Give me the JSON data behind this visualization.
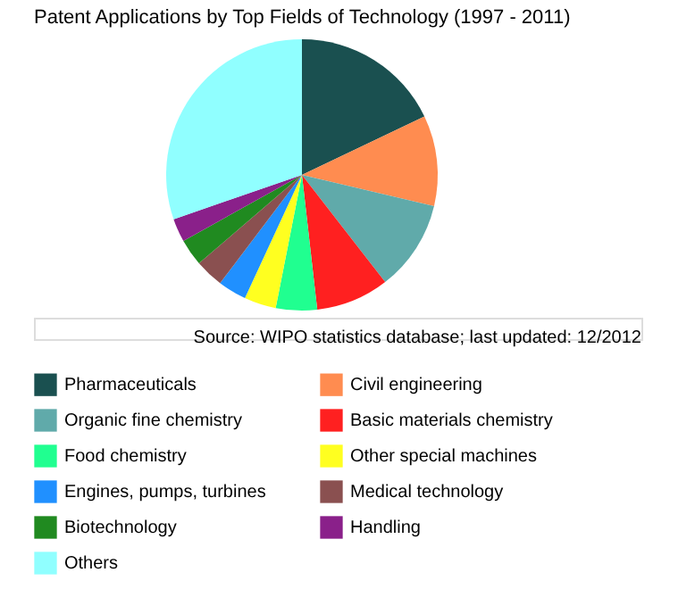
{
  "chart_data": {
    "type": "pie",
    "title": "Patent Applications by Top Fields of Technology (1997 - 2011)",
    "categories": [
      "Pharmaceuticals",
      "Civil engineering",
      "Organic fine chemistry",
      "Basic materials chemistry",
      "Food chemistry",
      "Other special machines",
      "Engines, pumps, turbines",
      "Medical technology",
      "Biotechnology",
      "Handling",
      "Others"
    ],
    "values": [
      17.9,
      10.8,
      10.8,
      8.7,
      4.9,
      3.8,
      3.4,
      3.4,
      3.2,
      2.8,
      30.3
    ],
    "colors": [
      "#1a5050",
      "#ff8c50",
      "#60aaaa",
      "#ff2020",
      "#20ff90",
      "#ffff20",
      "#2090ff",
      "#8a5050",
      "#208a20",
      "#8a208a",
      "#90ffff"
    ],
    "legend": "bottom",
    "annotations": [
      "Source: WIPO statistics database; last updated: 12/2012"
    ]
  }
}
